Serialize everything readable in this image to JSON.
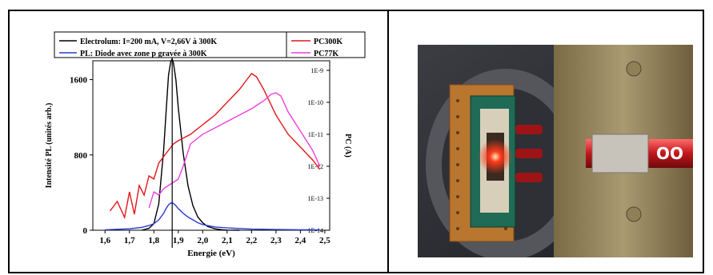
{
  "chart_data": {
    "type": "line",
    "xlabel": "Energie (eV)",
    "ylabel_left": "Intensité PL (unités arb.)",
    "ylabel_right": "PC (A)",
    "xlim": [
      1.55,
      2.52
    ],
    "x_ticks": [
      "1,6",
      "1,7",
      "1,8",
      "1,9",
      "2,0",
      "2,1",
      "2,2",
      "2,3",
      "2,4",
      "2,5"
    ],
    "x_tick_values": [
      1.6,
      1.7,
      1.8,
      1.9,
      2.0,
      2.1,
      2.2,
      2.3,
      2.4,
      2.5
    ],
    "ylim_left": [
      0,
      1800
    ],
    "y_left_ticks": [
      "0",
      "800",
      "1600"
    ],
    "y_left_tick_values": [
      0,
      800,
      1600
    ],
    "ylim_right_log": [
      -14,
      -8.7
    ],
    "y_right_ticks": [
      "1E-14",
      "1E-13",
      "1E-12",
      "1E-11",
      "1E-10",
      "1E-9"
    ],
    "y_right_tick_exponents": [
      -14,
      -13,
      -12,
      -11,
      -10,
      -9
    ],
    "vline_x": 1.875,
    "legend_left": [
      {
        "label": "Electrolum: I=200 mA, V=2,66V à 300K",
        "color": "#000000"
      },
      {
        "label": "PL: Diode avec zone p gravée à 300K",
        "color": "#2a3bd6"
      }
    ],
    "legend_right": [
      {
        "label": "PC300K",
        "color": "#e3161b"
      },
      {
        "label": "PC77K",
        "color": "#ee3fdc"
      }
    ],
    "series": [
      {
        "name": "Electrolum: I=200 mA, V=2,66V à 300K",
        "axis": "left",
        "color": "#000000",
        "x": [
          1.75,
          1.78,
          1.8,
          1.82,
          1.84,
          1.85,
          1.86,
          1.87,
          1.875,
          1.88,
          1.89,
          1.9,
          1.92,
          1.94,
          1.96,
          1.98,
          2.0,
          2.02,
          2.05,
          2.08,
          2.1,
          2.15
        ],
        "y": [
          0,
          20,
          70,
          280,
          850,
          1250,
          1650,
          1800,
          1820,
          1780,
          1600,
          1300,
          820,
          470,
          260,
          140,
          80,
          40,
          15,
          5,
          2,
          0
        ]
      },
      {
        "name": "PL: Diode avec zone p gravée à 300K",
        "axis": "left",
        "color": "#2a3bd6",
        "x": [
          1.6,
          1.65,
          1.7,
          1.75,
          1.78,
          1.8,
          1.82,
          1.84,
          1.85,
          1.86,
          1.87,
          1.88,
          1.89,
          1.9,
          1.92,
          1.94,
          1.96,
          1.98,
          2.0,
          2.05,
          2.1,
          2.2,
          2.3,
          2.4,
          2.48
        ],
        "y": [
          5,
          10,
          15,
          30,
          50,
          70,
          110,
          180,
          230,
          270,
          290,
          285,
          260,
          230,
          180,
          140,
          110,
          80,
          60,
          35,
          25,
          12,
          8,
          5,
          3
        ]
      },
      {
        "name": "PC300K",
        "axis": "right",
        "color": "#e3161b",
        "x": [
          1.62,
          1.65,
          1.68,
          1.7,
          1.72,
          1.74,
          1.76,
          1.78,
          1.8,
          1.82,
          1.85,
          1.88,
          1.9,
          1.95,
          2.0,
          2.05,
          2.1,
          2.15,
          2.18,
          2.2,
          2.22,
          2.25,
          2.3,
          2.35,
          2.4,
          2.45,
          2.48
        ],
        "y_log10": [
          -13.4,
          -13.1,
          -13.6,
          -12.8,
          -13.5,
          -12.6,
          -12.9,
          -12.3,
          -12.4,
          -11.9,
          -11.6,
          -11.3,
          -11.2,
          -11.0,
          -10.7,
          -10.4,
          -10.0,
          -9.6,
          -9.3,
          -9.1,
          -9.2,
          -9.6,
          -10.4,
          -11.0,
          -11.4,
          -11.8,
          -12.1
        ]
      },
      {
        "name": "PC77K",
        "axis": "right",
        "color": "#ee3fdc",
        "x": [
          1.78,
          1.8,
          1.82,
          1.84,
          1.86,
          1.88,
          1.9,
          1.92,
          1.95,
          2.0,
          2.05,
          2.1,
          2.15,
          2.2,
          2.25,
          2.28,
          2.3,
          2.32,
          2.35,
          2.4,
          2.45,
          2.48
        ],
        "y_log10": [
          -13.3,
          -12.8,
          -12.9,
          -12.7,
          -12.6,
          -12.5,
          -12.4,
          -12.0,
          -11.3,
          -11.0,
          -10.8,
          -10.6,
          -10.4,
          -10.2,
          -9.95,
          -9.75,
          -9.7,
          -9.8,
          -10.3,
          -10.9,
          -11.5,
          -12.0
        ]
      }
    ]
  },
  "photo": {
    "label_text": "OO"
  }
}
